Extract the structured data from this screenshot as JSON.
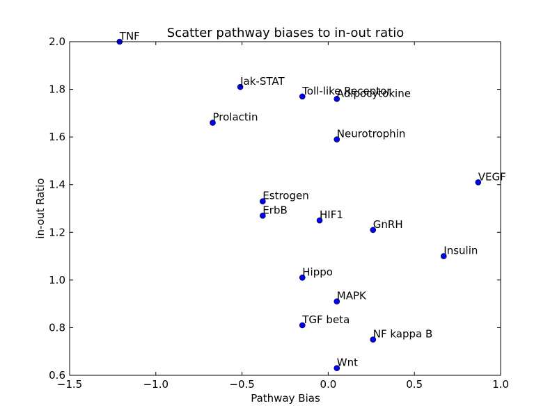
{
  "chart_data": {
    "type": "scatter",
    "title": "Scatter pathway biases to in-out ratio",
    "xlabel": "Pathway Bias",
    "ylabel": "in-out Ratio",
    "xlim": [
      -1.5,
      1.0
    ],
    "ylim": [
      0.6,
      2.0
    ],
    "xticks": [
      -1.5,
      -1.0,
      -0.5,
      0.0,
      0.5,
      1.0
    ],
    "xtick_labels": [
      "−1.5",
      "−1.0",
      "−0.5",
      "0.0",
      "0.5",
      "1.0"
    ],
    "yticks": [
      0.6,
      0.8,
      1.0,
      1.2,
      1.4,
      1.6,
      1.8,
      2.0
    ],
    "ytick_labels": [
      "0.6",
      "0.8",
      "1.0",
      "1.2",
      "1.4",
      "1.6",
      "1.8",
      "2.0"
    ],
    "grid": false,
    "legend": "none",
    "marker_color": "#0000ff",
    "points": [
      {
        "label": "TNF",
        "x": -1.21,
        "y": 2.0
      },
      {
        "label": "Jak-STAT",
        "x": -0.51,
        "y": 1.81
      },
      {
        "label": "Toll-like Receptor",
        "x": -0.15,
        "y": 1.77
      },
      {
        "label": "Adipocytokine",
        "x": 0.05,
        "y": 1.76
      },
      {
        "label": "Prolactin",
        "x": -0.67,
        "y": 1.66
      },
      {
        "label": "Neurotrophin",
        "x": 0.05,
        "y": 1.59
      },
      {
        "label": "VEGF",
        "x": 0.87,
        "y": 1.41
      },
      {
        "label": "Estrogen",
        "x": -0.38,
        "y": 1.33
      },
      {
        "label": "ErbB",
        "x": -0.38,
        "y": 1.27
      },
      {
        "label": "HIF1",
        "x": -0.05,
        "y": 1.25
      },
      {
        "label": "GnRH",
        "x": 0.26,
        "y": 1.21
      },
      {
        "label": "Insulin",
        "x": 0.67,
        "y": 1.1
      },
      {
        "label": "Hippo",
        "x": -0.15,
        "y": 1.01
      },
      {
        "label": "MAPK",
        "x": 0.05,
        "y": 0.91
      },
      {
        "label": "TGF beta",
        "x": -0.15,
        "y": 0.81
      },
      {
        "label": "NF kappa B",
        "x": 0.26,
        "y": 0.75
      },
      {
        "label": "Wnt",
        "x": 0.05,
        "y": 0.63
      }
    ]
  }
}
